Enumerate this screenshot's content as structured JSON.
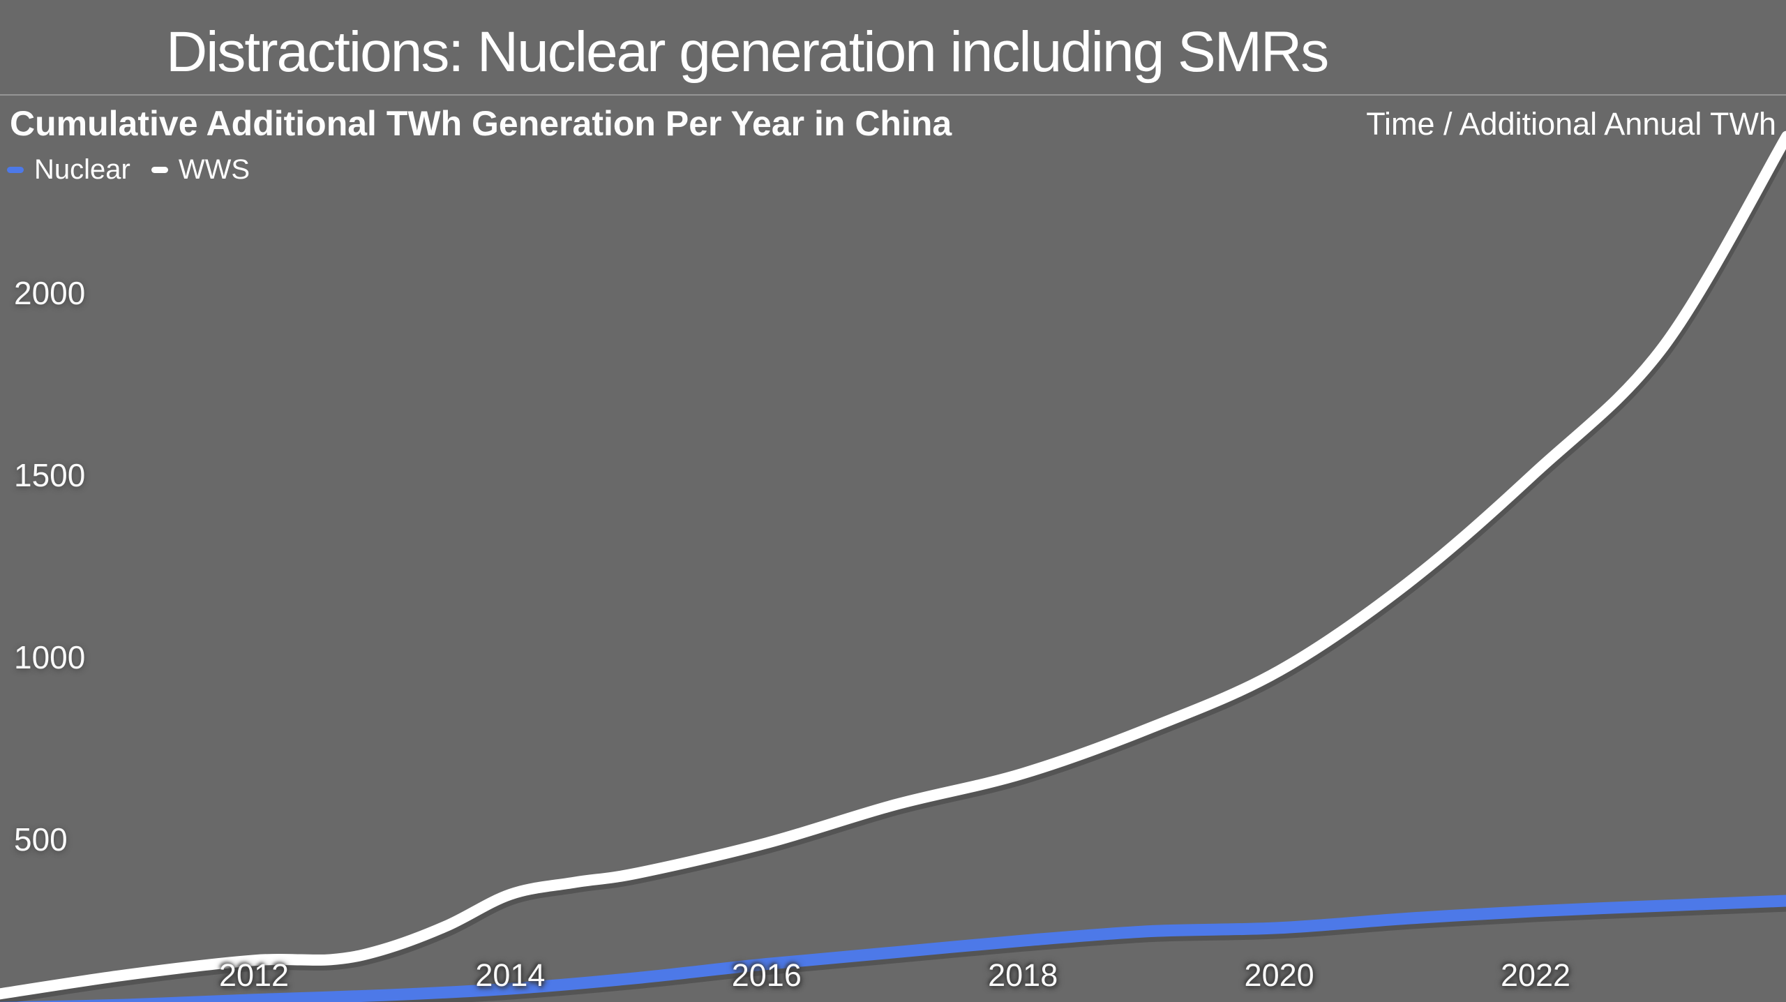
{
  "page": {
    "background": "#696969"
  },
  "header": {
    "title": "Distractions: Nuclear generation including SMRs",
    "chart_title": "Cumulative Additional TWh Generation Per Year in China",
    "axis_note": "Time / Additional Annual TWh"
  },
  "legend": {
    "items": [
      {
        "label": "Nuclear",
        "color": "#4d79e8"
      },
      {
        "label": "WWS",
        "color": "#ffffff"
      }
    ]
  },
  "chart_data": {
    "type": "line",
    "title": "Cumulative Additional TWh Generation Per Year in China",
    "xlabel": "Time",
    "ylabel": "Additional Annual TWh",
    "x_ticks": [
      "2012",
      "2014",
      "2016",
      "2018",
      "2020",
      "2022"
    ],
    "y_ticks": [
      "2000",
      "1500",
      "1000",
      "500"
    ],
    "x_tick_years": [
      2012,
      2014,
      2016,
      2018,
      2020,
      2022
    ],
    "y_tick_values": [
      2000,
      1500,
      1000,
      500
    ],
    "x_range": [
      2010,
      2024
    ],
    "y_range_visible": [
      0,
      2500
    ],
    "grid": false,
    "legend_position": "top-left",
    "series": [
      {
        "name": "Nuclear",
        "color": "#4d79e8",
        "stroke_width": 17,
        "points": [
          [
            2010,
            38
          ],
          [
            2011,
            46
          ],
          [
            2012,
            60
          ],
          [
            2013,
            72
          ],
          [
            2014,
            90
          ],
          [
            2015,
            120
          ],
          [
            2016,
            158
          ],
          [
            2017,
            190
          ],
          [
            2018,
            222
          ],
          [
            2019,
            248
          ],
          [
            2020,
            257
          ],
          [
            2021,
            283
          ],
          [
            2022,
            303
          ],
          [
            2023,
            318
          ],
          [
            2024,
            332
          ]
        ]
      },
      {
        "name": "WWS",
        "color": "#ffffff",
        "stroke_width": 16,
        "points": [
          [
            2010,
            75
          ],
          [
            2011,
            128
          ],
          [
            2012,
            168
          ],
          [
            2012.6,
            170
          ],
          [
            2013,
            197
          ],
          [
            2013.5,
            262
          ],
          [
            2014,
            349
          ],
          [
            2014.5,
            382
          ],
          [
            2015,
            408
          ],
          [
            2016,
            490
          ],
          [
            2017,
            595
          ],
          [
            2018,
            681
          ],
          [
            2019,
            807
          ],
          [
            2020,
            963
          ],
          [
            2021,
            1203
          ],
          [
            2022,
            1508
          ],
          [
            2023,
            1854
          ],
          [
            2023.96,
            2430
          ]
        ]
      }
    ]
  }
}
